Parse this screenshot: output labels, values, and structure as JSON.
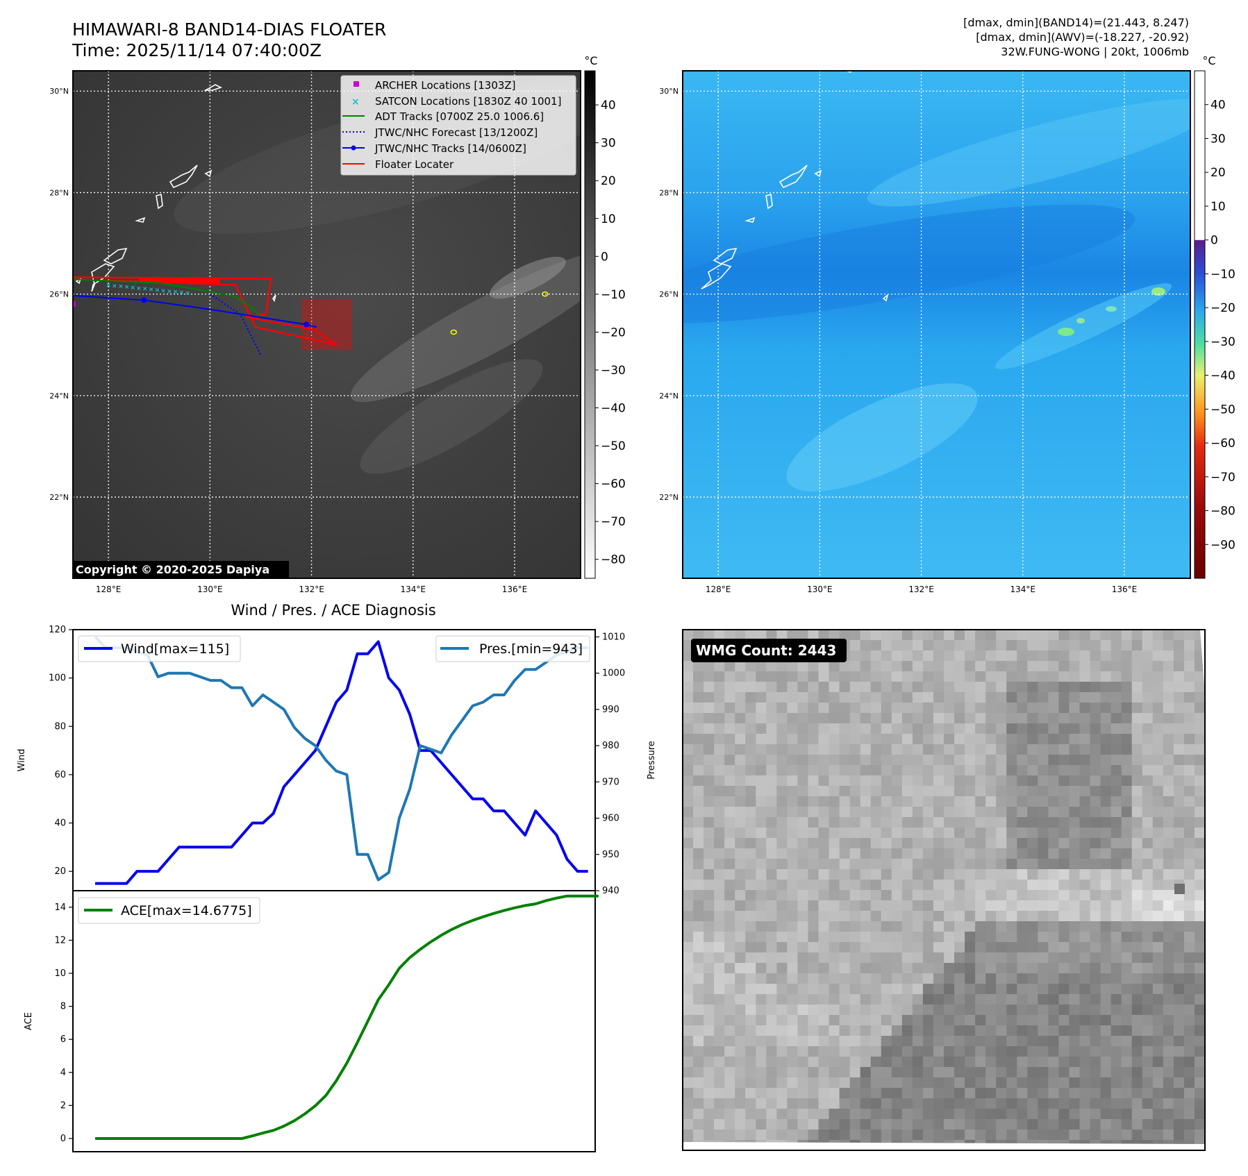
{
  "header": {
    "title": "HIMAWARI-8 BAND14-DIAS FLOATER",
    "time": "Time: 2025/11/14 07:40:00Z",
    "stats_line1": "[dmax, dmin](BAND14)=(21.443, 8.247)",
    "stats_line2": "[dmax, dmin](AWV)=(-18.227, -20.92)",
    "stats_line3": "32W.FUNG-WONG | 20kt, 1006mb"
  },
  "copyright": "Copyright © 2020-2025 Dapiya",
  "map": {
    "lat_labels": [
      "30°N",
      "28°N",
      "26°N",
      "24°N",
      "22°N"
    ],
    "lat_values": [
      30,
      28,
      26,
      24,
      22
    ],
    "lon_labels": [
      "128°E",
      "130°E",
      "132°E",
      "134°E",
      "136°E"
    ],
    "lon_values": [
      128,
      130,
      132,
      134,
      136
    ],
    "bounds": {
      "lon_min": 127.3,
      "lon_max": 137.3,
      "lat_min": 20.4,
      "lat_max": 30.4
    }
  },
  "legend": {
    "archer": "ARCHER Locations [1303Z]",
    "satcon": "SATCON Locations [1830Z 40 1001]",
    "adt": "ADT Tracks [0700Z 25.0 1006.6]",
    "forecast": "JTWC/NHC Forecast [13/1200Z]",
    "tracks": "JTWC/NHC Tracks [14/0600Z]",
    "floater": "Floater Locater"
  },
  "colorbar_gray": {
    "unit": "°C",
    "ticks": [
      "40",
      "30",
      "20",
      "10",
      "0",
      "−10",
      "−20",
      "−30",
      "−40",
      "−50",
      "−60",
      "−70",
      "−80"
    ],
    "tick_values": [
      40,
      30,
      20,
      10,
      0,
      -10,
      -20,
      -30,
      -40,
      -50,
      -60,
      -70,
      -80
    ],
    "range": [
      -85,
      49
    ]
  },
  "colorbar_color": {
    "unit": "°C",
    "ticks": [
      "40",
      "30",
      "20",
      "10",
      "0",
      "−10",
      "−20",
      "−30",
      "−40",
      "−50",
      "−60",
      "−70",
      "−80",
      "−90"
    ],
    "tick_values": [
      40,
      30,
      20,
      10,
      0,
      -10,
      -20,
      -30,
      -40,
      -50,
      -60,
      -70,
      -80,
      -90
    ],
    "range": [
      -100,
      50
    ]
  },
  "colors": {
    "wind": "#0000ee",
    "pressure": "#1f77b4",
    "ace": "#008000",
    "floater": "#ff0000",
    "archer": "#cc00cc",
    "satcon": "#17becf",
    "ir_blue": "#3fb4f2"
  },
  "diag_title": "Wind / Pres. / ACE Diagnosis",
  "wmg_label": "WMG Count: 2443",
  "chart_data": [
    {
      "type": "line",
      "title": "Wind / Pres. / ACE Diagnosis",
      "ylabel": "Wind",
      "y2label": "Pressure",
      "ylim": [
        12,
        120
      ],
      "y2lim": [
        940,
        1012
      ],
      "yticks": [
        20,
        40,
        60,
        80,
        100,
        120
      ],
      "y2ticks": [
        940,
        950,
        960,
        970,
        980,
        990,
        1000,
        1010
      ],
      "series": [
        {
          "name": "Wind[max=115]",
          "axis": "left",
          "values": [
            15,
            15,
            15,
            15,
            20,
            20,
            20,
            25,
            30,
            30,
            30,
            30,
            30,
            30,
            35,
            40,
            40,
            44,
            55,
            60,
            65,
            70,
            80,
            90,
            95,
            110,
            110,
            115,
            100,
            95,
            85,
            70,
            70,
            65,
            60,
            55,
            50,
            50,
            45,
            45,
            40,
            35,
            45,
            40,
            35,
            25,
            20,
            20
          ]
        },
        {
          "name": "Pres.[min=943]",
          "axis": "right",
          "values": [
            1010,
            1007,
            1007,
            1007,
            1006,
            1005,
            999,
            1000,
            1000,
            1000,
            999,
            998,
            998,
            996,
            996,
            991,
            994,
            992,
            990,
            985,
            982,
            980,
            976,
            973,
            972,
            950,
            950,
            943,
            945,
            960,
            968,
            980,
            979,
            978,
            983,
            987,
            991,
            992,
            994,
            994,
            998,
            1001,
            1001,
            1003,
            1005,
            1006,
            1007,
            1007
          ]
        }
      ]
    },
    {
      "type": "line",
      "ylabel": "ACE",
      "ylim": [
        -0.8,
        15
      ],
      "yticks": [
        0,
        2,
        4,
        6,
        8,
        10,
        12,
        14
      ],
      "series": [
        {
          "name": "ACE[max=14.6775]",
          "values": [
            0,
            0,
            0,
            0,
            0,
            0,
            0,
            0,
            0,
            0,
            0,
            0,
            0,
            0,
            0,
            0.16,
            0.33,
            0.49,
            0.75,
            1.08,
            1.49,
            1.98,
            2.6,
            3.5,
            4.56,
            5.8,
            7.1,
            8.4,
            9.3,
            10.3,
            10.95,
            11.45,
            11.9,
            12.3,
            12.65,
            12.95,
            13.2,
            13.42,
            13.62,
            13.8,
            13.96,
            14.1,
            14.2,
            14.4,
            14.55,
            14.6775,
            14.6775,
            14.6775,
            14.6775
          ]
        }
      ]
    }
  ]
}
